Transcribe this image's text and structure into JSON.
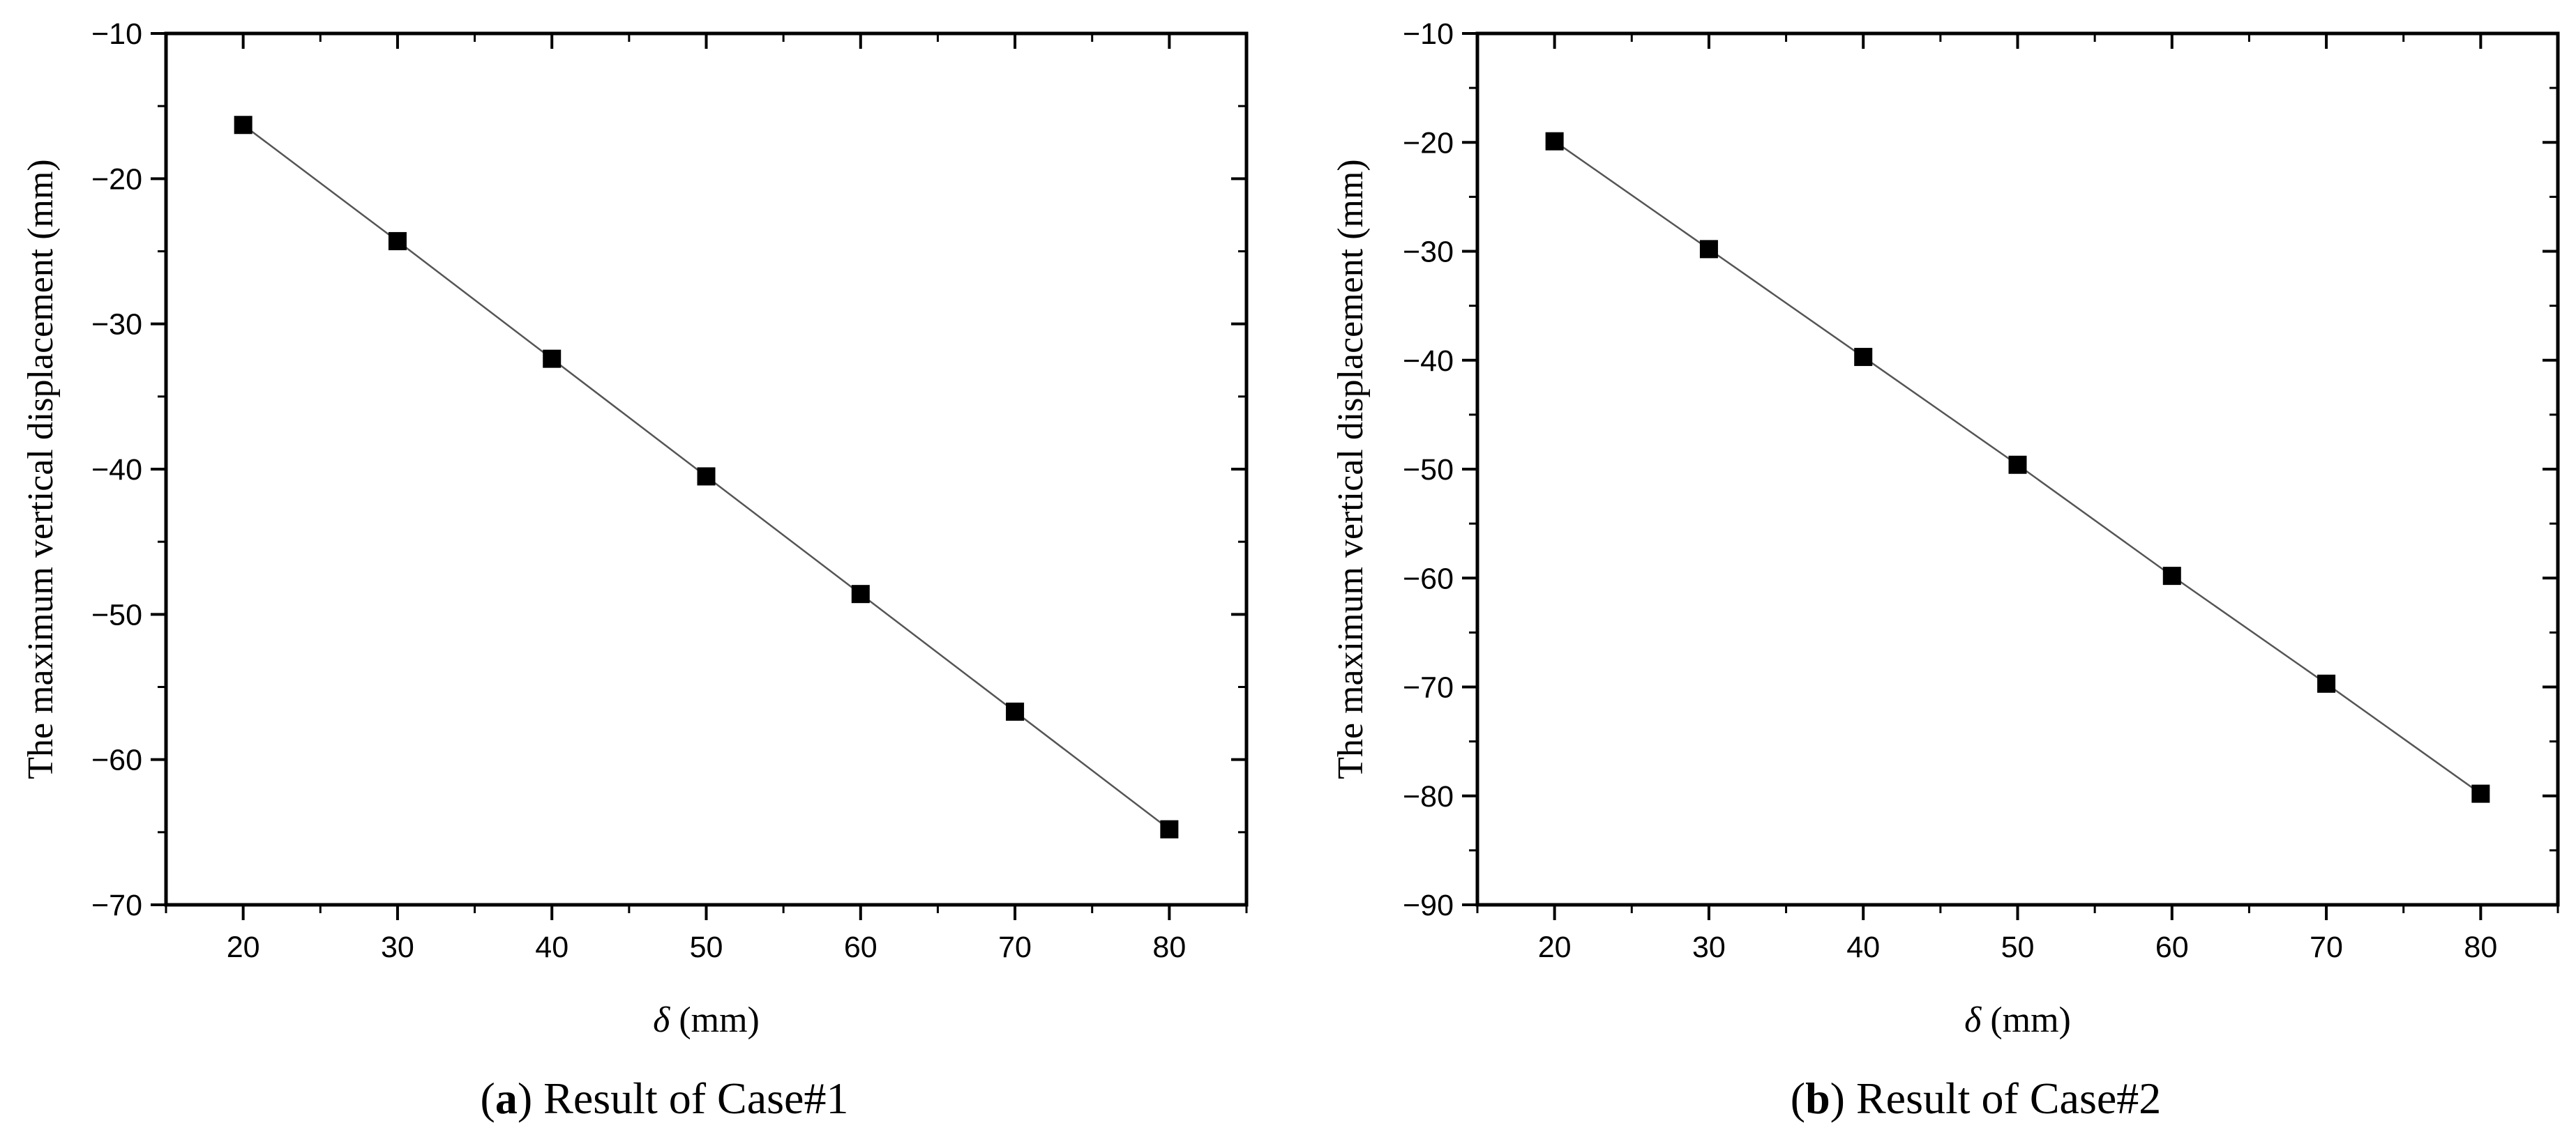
{
  "chart_data": [
    {
      "type": "line",
      "caption_open": "(",
      "caption_letter": "a",
      "caption_rest": ") Result of Case#1",
      "xlabel_symbol": "δ",
      "xlabel_unit": " (mm)",
      "ylabel": "The maximum vertical displacement (mm)",
      "xlim": [
        15,
        85
      ],
      "ylim": [
        -70,
        -10
      ],
      "xticks": [
        20,
        30,
        40,
        50,
        60,
        70,
        80
      ],
      "xtick_labels": [
        "20",
        "30",
        "40",
        "50",
        "60",
        "70",
        "80"
      ],
      "yticks": [
        -10,
        -20,
        -30,
        -40,
        -50,
        -60,
        -70
      ],
      "ytick_labels": [
        "−10",
        "−20",
        "−30",
        "−40",
        "−50",
        "−60",
        "−70"
      ],
      "grid": false,
      "marker": "square",
      "line_color": "#555555",
      "marker_color": "#000000",
      "series": [
        {
          "x": [
            20,
            30,
            40,
            50,
            60,
            70,
            80
          ],
          "y": [
            -16.3,
            -24.3,
            -32.4,
            -40.5,
            -48.6,
            -56.7,
            -64.8
          ]
        }
      ]
    },
    {
      "type": "line",
      "caption_open": "(",
      "caption_letter": "b",
      "caption_rest": ") Result of Case#2",
      "xlabel_symbol": "δ",
      "xlabel_unit": " (mm)",
      "ylabel": "The maximum vertical displacement (mm)",
      "xlim": [
        15,
        85
      ],
      "ylim": [
        -90,
        -10
      ],
      "xticks": [
        20,
        30,
        40,
        50,
        60,
        70,
        80
      ],
      "xtick_labels": [
        "20",
        "30",
        "40",
        "50",
        "60",
        "70",
        "80"
      ],
      "yticks": [
        -10,
        -20,
        -30,
        -40,
        -50,
        -60,
        -70,
        -80,
        -90
      ],
      "ytick_labels": [
        "−10",
        "−20",
        "−30",
        "−40",
        "−50",
        "−60",
        "−70",
        "−80",
        "−90"
      ],
      "grid": false,
      "marker": "square",
      "line_color": "#555555",
      "marker_color": "#000000",
      "series": [
        {
          "x": [
            20,
            30,
            40,
            50,
            60,
            70,
            80
          ],
          "y": [
            -19.9,
            -29.8,
            -39.7,
            -49.6,
            -59.8,
            -69.7,
            -79.8
          ]
        }
      ]
    }
  ]
}
